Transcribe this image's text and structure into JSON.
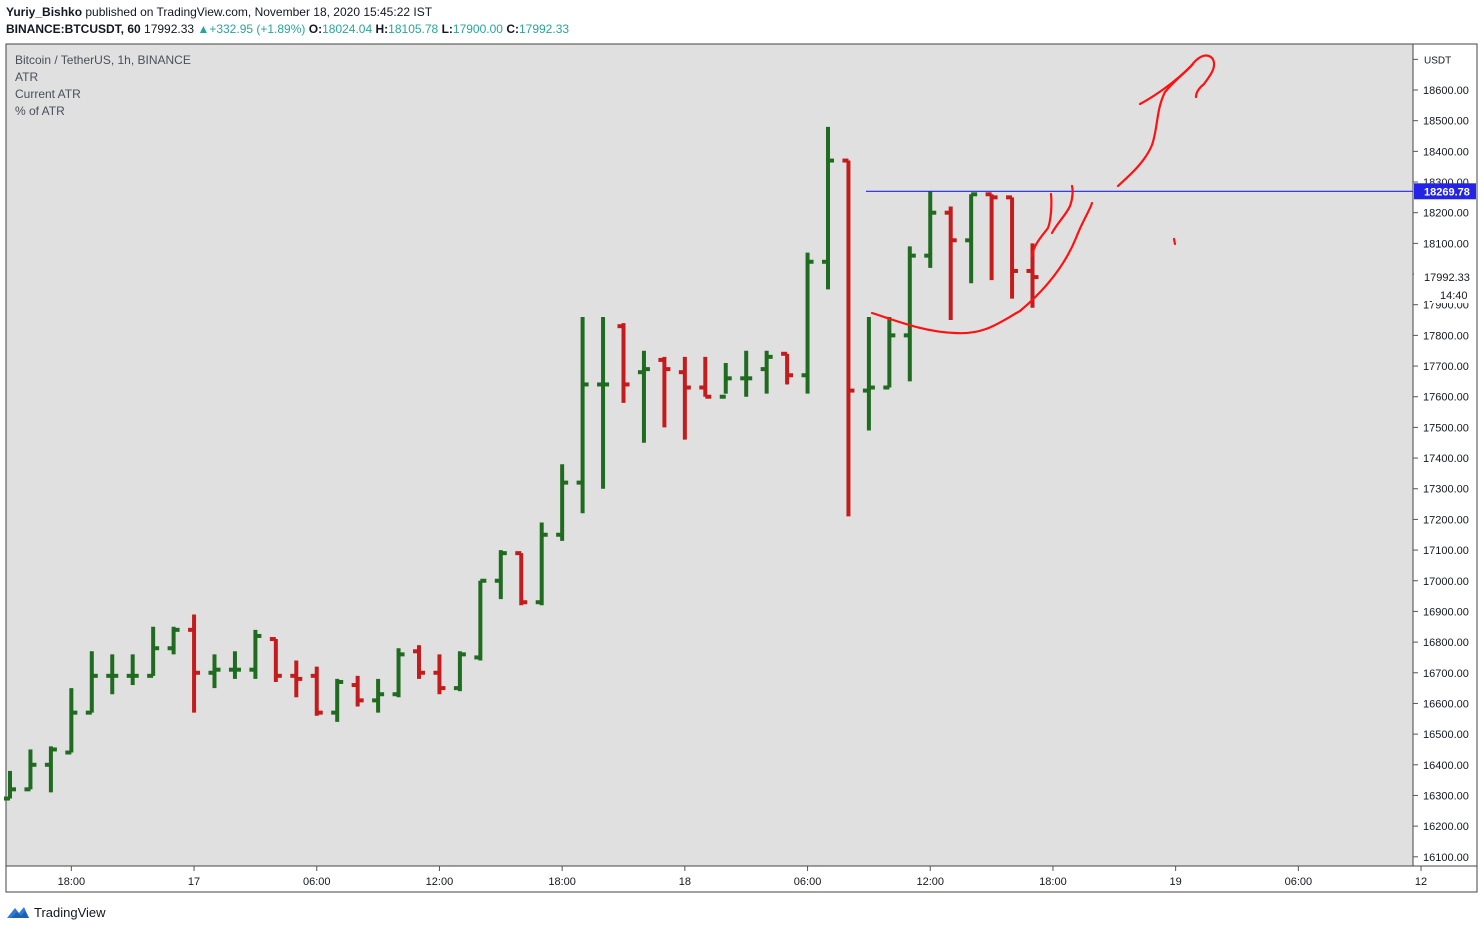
{
  "header": {
    "author": "Yuriy_Bishko",
    "published_text": "published on TradingView.com, November 18, 2020 15:45:22 IST",
    "symbol": "BINANCE:BTCUSDT, 60",
    "last_price": "17992.33",
    "change": "+332.95 (+1.89%)",
    "o_label": "O:",
    "o_value": "18024.04",
    "h_label": "H:",
    "h_value": "18105.78",
    "l_label": "L:",
    "l_value": "17900.00",
    "c_label": "C:",
    "c_value": "17992.33"
  },
  "legend": {
    "title": "Bitcoin / TetherUS, 1h, BINANCE",
    "items": [
      "ATR",
      "Current ATR",
      "% of ATR"
    ]
  },
  "footer": {
    "brand": "TradingView"
  },
  "chart_data": {
    "type": "ohlc",
    "y_axis_unit": "USDT",
    "ylim": [
      16070,
      18750
    ],
    "y_ticks": [
      16100,
      16200,
      16300,
      16400,
      16500,
      16600,
      16700,
      16800,
      16900,
      17000,
      17100,
      17200,
      17300,
      17400,
      17500,
      17600,
      17700,
      17800,
      17900,
      18000,
      18100,
      18200,
      18300,
      18400,
      18500,
      18600
    ],
    "y_tick_labels": [
      "16100.00",
      "16200.00",
      "16300.00",
      "16400.00",
      "16500.00",
      "16600.00",
      "16700.00",
      "16800.00",
      "16900.00",
      "17000.00",
      "17100.00",
      "17200.00",
      "17300.00",
      "17400.00",
      "17500.00",
      "17600.00",
      "17700.00",
      "17800.00",
      "17900.00",
      "18000.00",
      "18100.00",
      "18200.00",
      "18300.00",
      "18400.00",
      "18500.00",
      "18600.00"
    ],
    "x_ticks": [
      {
        "bar": 3,
        "label": "18:00"
      },
      {
        "bar": 9,
        "label": "17"
      },
      {
        "bar": 15,
        "label": "06:00"
      },
      {
        "bar": 21,
        "label": "12:00"
      },
      {
        "bar": 27,
        "label": "18:00"
      },
      {
        "bar": 33,
        "label": "18"
      },
      {
        "bar": 39,
        "label": "06:00"
      },
      {
        "bar": 45,
        "label": "12:00"
      },
      {
        "bar": 51,
        "label": "18:00"
      },
      {
        "bar": 57,
        "label": "19"
      },
      {
        "bar": 63,
        "label": "06:00"
      },
      {
        "bar": 69,
        "label": "12"
      }
    ],
    "horizontal_line": {
      "value": 18269.78,
      "label": "18269.78",
      "color": "#2424e6"
    },
    "last_price_label": "17992.33",
    "countdown_label": "14:40",
    "axis_top_label": "USDT",
    "colors": {
      "up": "#1f6b1f",
      "down": "#c41c1c",
      "background": "#e0e0e0",
      "annotation": "#ff1111"
    },
    "bars": [
      {
        "o": 16290,
        "h": 16380,
        "l": 16290,
        "c": 16320
      },
      {
        "o": 16320,
        "h": 16450,
        "l": 16320,
        "c": 16400
      },
      {
        "o": 16400,
        "h": 16460,
        "l": 16310,
        "c": 16450
      },
      {
        "o": 16440,
        "h": 16650,
        "l": 16440,
        "c": 16570
      },
      {
        "o": 16570,
        "h": 16770,
        "l": 16570,
        "c": 16690
      },
      {
        "o": 16690,
        "h": 16760,
        "l": 16630,
        "c": 16690
      },
      {
        "o": 16690,
        "h": 16760,
        "l": 16660,
        "c": 16690
      },
      {
        "o": 16690,
        "h": 16850,
        "l": 16690,
        "c": 16780
      },
      {
        "o": 16780,
        "h": 16850,
        "l": 16760,
        "c": 16840
      },
      {
        "o": 16840,
        "h": 16890,
        "l": 16570,
        "c": 16700
      },
      {
        "o": 16700,
        "h": 16760,
        "l": 16650,
        "c": 16710
      },
      {
        "o": 16710,
        "h": 16770,
        "l": 16680,
        "c": 16710
      },
      {
        "o": 16710,
        "h": 16840,
        "l": 16680,
        "c": 16820
      },
      {
        "o": 16810,
        "h": 16810,
        "l": 16670,
        "c": 16690
      },
      {
        "o": 16690,
        "h": 16740,
        "l": 16620,
        "c": 16680
      },
      {
        "o": 16690,
        "h": 16720,
        "l": 16560,
        "c": 16570
      },
      {
        "o": 16570,
        "h": 16680,
        "l": 16540,
        "c": 16670
      },
      {
        "o": 16660,
        "h": 16690,
        "l": 16590,
        "c": 16610
      },
      {
        "o": 16610,
        "h": 16680,
        "l": 16570,
        "c": 16630
      },
      {
        "o": 16630,
        "h": 16780,
        "l": 16620,
        "c": 16760
      },
      {
        "o": 16770,
        "h": 16790,
        "l": 16680,
        "c": 16700
      },
      {
        "o": 16700,
        "h": 16760,
        "l": 16630,
        "c": 16650
      },
      {
        "o": 16650,
        "h": 16770,
        "l": 16640,
        "c": 16760
      },
      {
        "o": 16750,
        "h": 17000,
        "l": 16740,
        "c": 17000
      },
      {
        "o": 17000,
        "h": 17100,
        "l": 16940,
        "c": 17090
      },
      {
        "o": 17090,
        "h": 17090,
        "l": 16920,
        "c": 16930
      },
      {
        "o": 16930,
        "h": 17190,
        "l": 16920,
        "c": 17150
      },
      {
        "o": 17150,
        "h": 17380,
        "l": 17130,
        "c": 17320
      },
      {
        "o": 17320,
        "h": 17860,
        "l": 17220,
        "c": 17640
      },
      {
        "o": 17640,
        "h": 17860,
        "l": 17300,
        "c": 17640
      },
      {
        "o": 17830,
        "h": 17840,
        "l": 17580,
        "c": 17640
      },
      {
        "o": 17680,
        "h": 17750,
        "l": 17450,
        "c": 17690
      },
      {
        "o": 17720,
        "h": 17730,
        "l": 17500,
        "c": 17690
      },
      {
        "o": 17680,
        "h": 17730,
        "l": 17460,
        "c": 17630
      },
      {
        "o": 17630,
        "h": 17730,
        "l": 17600,
        "c": 17600
      },
      {
        "o": 17600,
        "h": 17710,
        "l": 17610,
        "c": 17660
      },
      {
        "o": 17660,
        "h": 17750,
        "l": 17600,
        "c": 17660
      },
      {
        "o": 17690,
        "h": 17750,
        "l": 17610,
        "c": 17730
      },
      {
        "o": 17740,
        "h": 17740,
        "l": 17640,
        "c": 17670
      },
      {
        "o": 17670,
        "h": 18070,
        "l": 17610,
        "c": 18040
      },
      {
        "o": 18040,
        "h": 18480,
        "l": 17950,
        "c": 18370
      },
      {
        "o": 18370,
        "h": 18370,
        "l": 17210,
        "c": 17620
      },
      {
        "o": 17620,
        "h": 17860,
        "l": 17490,
        "c": 17630
      },
      {
        "o": 17630,
        "h": 17860,
        "l": 17630,
        "c": 17800
      },
      {
        "o": 17800,
        "h": 18090,
        "l": 17650,
        "c": 18060
      },
      {
        "o": 18060,
        "h": 18270,
        "l": 18020,
        "c": 18200
      },
      {
        "o": 18200,
        "h": 18220,
        "l": 17850,
        "c": 18110
      },
      {
        "o": 18110,
        "h": 18260,
        "l": 17970,
        "c": 18260
      },
      {
        "o": 18260,
        "h": 18260,
        "l": 17980,
        "c": 18250
      },
      {
        "o": 18250,
        "h": 18250,
        "l": 17920,
        "c": 18010
      },
      {
        "o": 18010,
        "h": 18100,
        "l": 17890,
        "c": 17990
      }
    ]
  }
}
